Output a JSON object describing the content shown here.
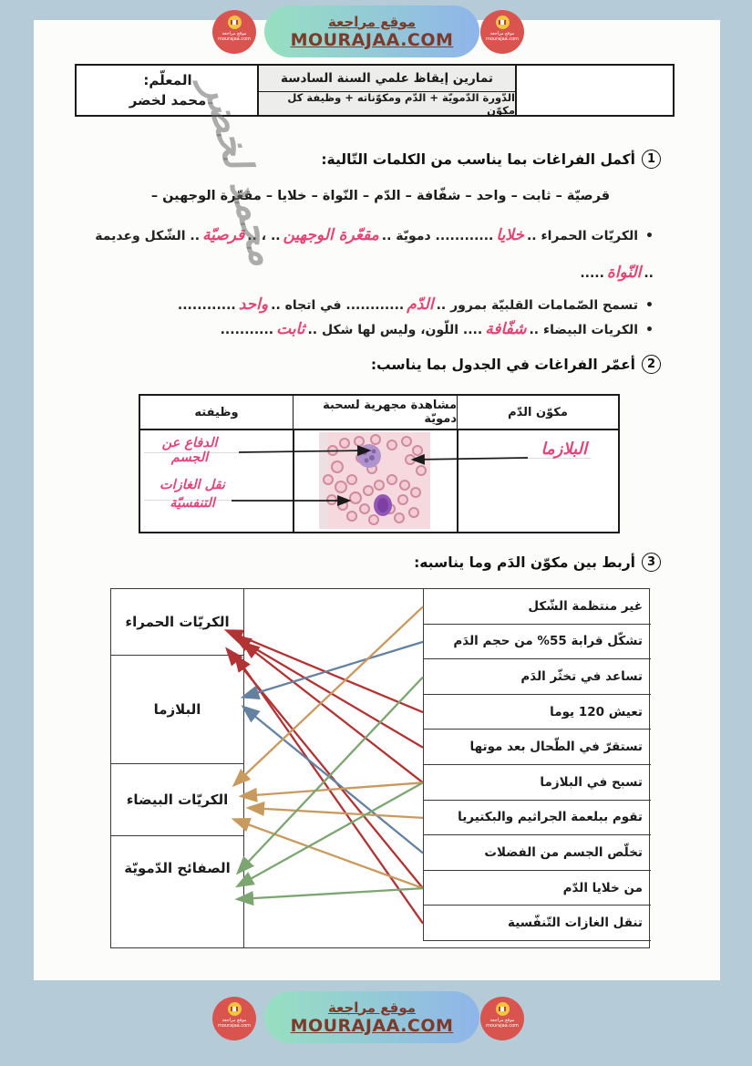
{
  "brand": {
    "site_name_ar": "موقع مراجعة",
    "site_url": "MOURAJAA.COM",
    "logo_line1": "موقع مراجعة",
    "logo_line2": "mourajaa.com",
    "pill_gradient_from": "#97e0c1",
    "pill_gradient_to": "#8fb5ea",
    "text_color": "#7c3a2b",
    "logo_bg": "#d9534f",
    "logo_badge": "#f2c53d"
  },
  "info_table": {
    "teacher_label": "المعلّم:",
    "teacher_name": "محمد لخضر",
    "subject_line1": "تمارين إيقاظ علمي السنة السادسة",
    "subject_line2": "الدّورة الدّمويّة + الدّم ومكوّناته + وظيفة كل مكوّن"
  },
  "exercise1": {
    "number": "1",
    "title": "أكمل الفراغات بما يناسب من الكلمات التّالية:",
    "word_bank": "قرصيّة – ثابت – واحد – شفّافة – الدّم – النّواة – خلايا – مقعّرة الوجهين –",
    "answer_color": "#e0467a",
    "watermark": "محمد لخضر",
    "items": [
      {
        "segments": [
          {
            "t": "الكريّات الحمراء .."
          },
          {
            "a": "خلايا"
          },
          {
            "t": "............ دمويّة .."
          },
          {
            "a": "مقعّرة الوجهين"
          },
          {
            "t": ".. ، .."
          },
          {
            "a": "قرصيّة"
          },
          {
            "t": ".. الشّكل وعديمة .."
          },
          {
            "a": "النّواة"
          },
          {
            "t": "....."
          }
        ]
      },
      {
        "segments": [
          {
            "t": "تسمح الصّمامات القلبيّة بمرور .."
          },
          {
            "a": "الدّم"
          },
          {
            "t": "............ في اتجاه .."
          },
          {
            "a": "واحد"
          },
          {
            "t": "............"
          }
        ]
      },
      {
        "segments": [
          {
            "t": "الكريات البيضاء .."
          },
          {
            "a": "شفّافة"
          },
          {
            "t": ".... اللّون، وليس لها شكل .."
          },
          {
            "a": "ثابت"
          },
          {
            "t": "..........."
          }
        ]
      }
    ]
  },
  "exercise2": {
    "number": "2",
    "title": "أعمّر الفراغات في الجدول بما يناسب:",
    "col_component": "مكوّن الدّم",
    "col_observation": "مشاهدة مجهرية لسحبة دمويّة",
    "col_function": "وظيفته",
    "component_answer": "البلازما",
    "function_answer_1": "الدفاع عن الجسم",
    "function_answer_2": "نقل الغازات التنفسيّة"
  },
  "exercise3": {
    "number": "3",
    "title": "أربط بين مكوّن الدَم وما يناسبه:",
    "components": [
      "الكريّات الحمراء",
      "البلازما",
      "الكريّات البيضاء",
      "الصفائح الدّمويّة"
    ],
    "component_colors": [
      "#b23333",
      "#64819f",
      "#c99a5e",
      "#7ca571"
    ],
    "descriptions": [
      "غير منتظمة الشّكل",
      "تشكّل قرابة 55% من حجم الدَم",
      "تساعد في تخثّر الدَم",
      "تعيش 120 يوما",
      "تستقرّ في الطّحال بعد موتها",
      "تسبح في البلازما",
      "تقوم ببلعمة الجراثيم والبكتيريا",
      "تخلّص الجسم من الفضلات",
      "من خلايا الدّم",
      "تنقل الغازات التّنفّسية"
    ],
    "connections": [
      {
        "desc": 3,
        "comp": 0
      },
      {
        "desc": 4,
        "comp": 0
      },
      {
        "desc": 5,
        "comp": 0
      },
      {
        "desc": 8,
        "comp": 0
      },
      {
        "desc": 9,
        "comp": 0
      },
      {
        "desc": 1,
        "comp": 1
      },
      {
        "desc": 7,
        "comp": 1
      },
      {
        "desc": 0,
        "comp": 2
      },
      {
        "desc": 5,
        "comp": 2
      },
      {
        "desc": 6,
        "comp": 2
      },
      {
        "desc": 8,
        "comp": 2
      },
      {
        "desc": 2,
        "comp": 3
      },
      {
        "desc": 5,
        "comp": 3
      },
      {
        "desc": 8,
        "comp": 3
      }
    ]
  }
}
